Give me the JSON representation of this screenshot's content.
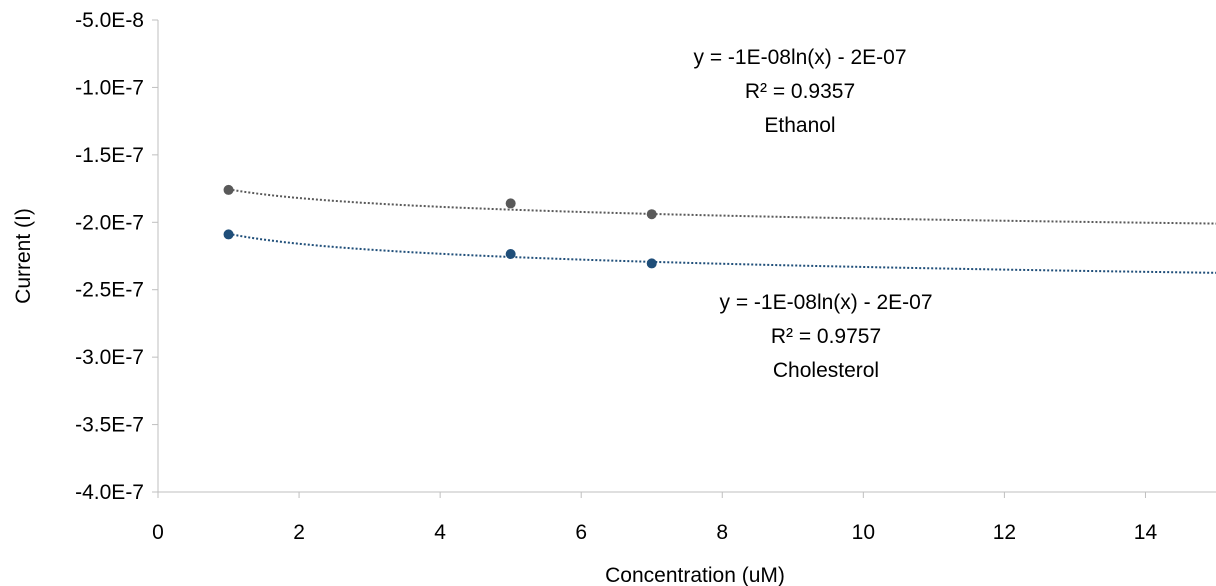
{
  "chart_data": {
    "type": "scatter",
    "xlabel": "Concentration (uM)",
    "ylabel": "Current (I)",
    "xlim": [
      0,
      15
    ],
    "ylim": [
      -4e-07,
      -5e-08
    ],
    "x_ticks": [
      {
        "value": 0,
        "label": "0"
      },
      {
        "value": 2,
        "label": "2"
      },
      {
        "value": 4,
        "label": "4"
      },
      {
        "value": 6,
        "label": "6"
      },
      {
        "value": 8,
        "label": "8"
      },
      {
        "value": 10,
        "label": "10"
      },
      {
        "value": 12,
        "label": "12"
      },
      {
        "value": 14,
        "label": "14"
      }
    ],
    "y_ticks": [
      {
        "value": -5e-08,
        "label": "-5.0E-8"
      },
      {
        "value": -1e-07,
        "label": "-1.0E-7"
      },
      {
        "value": -1.5e-07,
        "label": "-1.5E-7"
      },
      {
        "value": -2e-07,
        "label": "-2.0E-7"
      },
      {
        "value": -2.5e-07,
        "label": "-2.5E-7"
      },
      {
        "value": -3e-07,
        "label": "-3.0E-7"
      },
      {
        "value": -3.5e-07,
        "label": "-3.5E-7"
      },
      {
        "value": -4e-07,
        "label": "-4.0E-7"
      }
    ],
    "grid": false,
    "series": [
      {
        "name": "Ethanol",
        "color": "#595959",
        "points": [
          {
            "x": 1,
            "y": -1.76e-07
          },
          {
            "x": 5,
            "y": -1.86e-07
          },
          {
            "x": 7,
            "y": -1.94e-07
          }
        ],
        "trendline": {
          "type": "logarithmic",
          "a": -9.4e-09,
          "b": -1.755e-07
        },
        "annotation": {
          "lines": [
            "y = -1E-08ln(x) - 2E-07",
            "R² = 0.9357",
            "Ethanol"
          ]
        }
      },
      {
        "name": "Cholesterol",
        "color": "#1f4e79",
        "points": [
          {
            "x": 1,
            "y": -2.09e-07
          },
          {
            "x": 5,
            "y": -2.235e-07
          },
          {
            "x": 7,
            "y": -2.305e-07
          }
        ],
        "trendline": {
          "type": "logarithmic",
          "a": -1.07e-08,
          "b": -2.085e-07
        },
        "annotation": {
          "lines": [
            "y = -1E-08ln(x) - 2E-07",
            "R² = 0.9757",
            "Cholesterol"
          ]
        }
      }
    ]
  }
}
